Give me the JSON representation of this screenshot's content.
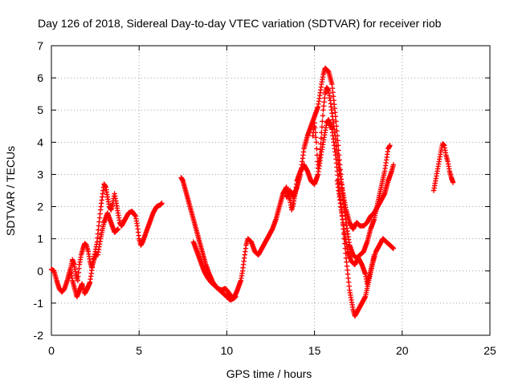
{
  "chart_data": {
    "type": "scatter",
    "title": "Day 126 of 2018, Sidereal Day-to-day VTEC variation (SDTVAR) for receiver riob",
    "xlabel": "GPS time / hours",
    "ylabel": "SDTVAR / TECUs",
    "xlim": [
      0,
      25
    ],
    "ylim": [
      -2,
      7
    ],
    "x_ticks": [
      "0",
      "5",
      "10",
      "15",
      "20",
      "25"
    ],
    "y_ticks": [
      "-2",
      "-1",
      "0",
      "1",
      "2",
      "3",
      "4",
      "5",
      "6",
      "7"
    ],
    "grid": true,
    "marker": "+",
    "series": [
      {
        "name": "SDTVAR",
        "color": "#ff0000",
        "segments": [
          [
            [
              0.0,
              0.05
            ],
            [
              0.15,
              0.0
            ],
            [
              0.3,
              -0.3
            ],
            [
              0.45,
              -0.55
            ],
            [
              0.6,
              -0.65
            ],
            [
              0.75,
              -0.55
            ],
            [
              0.9,
              -0.3
            ],
            [
              1.0,
              -0.1
            ],
            [
              1.1,
              0.1
            ],
            [
              1.2,
              0.35
            ],
            [
              1.3,
              0.2
            ],
            [
              1.4,
              -0.1
            ],
            [
              1.5,
              -0.3
            ],
            [
              1.6,
              0.2
            ],
            [
              1.7,
              0.5
            ],
            [
              1.8,
              0.7
            ],
            [
              1.9,
              0.85
            ],
            [
              2.0,
              0.8
            ],
            [
              2.1,
              0.6
            ],
            [
              2.2,
              0.3
            ],
            [
              2.3,
              0.1
            ],
            [
              2.4,
              0.3
            ],
            [
              2.5,
              0.6
            ],
            [
              2.6,
              0.9
            ],
            [
              2.7,
              1.4
            ],
            [
              2.8,
              1.9
            ],
            [
              2.9,
              2.3
            ],
            [
              3.0,
              2.7
            ],
            [
              3.1,
              2.6
            ],
            [
              3.2,
              2.3
            ],
            [
              3.3,
              2.0
            ],
            [
              3.4,
              1.9
            ],
            [
              3.5,
              2.1
            ],
            [
              3.6,
              2.4
            ],
            [
              3.7,
              2.1
            ],
            [
              3.8,
              1.8
            ],
            [
              3.9,
              1.5
            ],
            [
              4.0,
              1.4
            ],
            [
              4.2,
              1.6
            ],
            [
              4.4,
              1.8
            ],
            [
              4.6,
              1.85
            ],
            [
              4.8,
              1.7
            ],
            [
              4.9,
              1.4
            ],
            [
              5.0,
              1.0
            ],
            [
              5.1,
              0.8
            ],
            [
              5.2,
              0.9
            ],
            [
              5.4,
              1.2
            ],
            [
              5.6,
              1.5
            ],
            [
              5.8,
              1.8
            ],
            [
              6.0,
              2.0
            ],
            [
              6.2,
              2.05
            ],
            [
              6.3,
              2.1
            ]
          ],
          [
            [
              1.0,
              -0.2
            ],
            [
              1.1,
              0.0
            ],
            [
              1.2,
              -0.3
            ],
            [
              1.3,
              -0.5
            ],
            [
              1.45,
              -0.8
            ],
            [
              1.6,
              -0.6
            ],
            [
              1.75,
              -0.4
            ],
            [
              1.9,
              -0.7
            ],
            [
              2.05,
              -0.55
            ],
            [
              2.2,
              -0.35
            ],
            [
              2.35,
              0.2
            ],
            [
              2.5,
              0.5
            ],
            [
              2.65,
              0.5
            ],
            [
              2.8,
              1.0
            ],
            [
              3.0,
              1.5
            ],
            [
              3.2,
              1.8
            ],
            [
              3.4,
              1.5
            ],
            [
              3.6,
              1.2
            ],
            [
              3.8,
              1.3
            ]
          ],
          [
            [
              7.4,
              2.9
            ],
            [
              7.5,
              2.8
            ],
            [
              7.6,
              2.6
            ],
            [
              7.7,
              2.4
            ],
            [
              7.8,
              2.2
            ],
            [
              7.9,
              2.0
            ],
            [
              8.0,
              1.8
            ],
            [
              8.2,
              1.4
            ],
            [
              8.4,
              1.0
            ],
            [
              8.6,
              0.6
            ],
            [
              8.8,
              0.2
            ],
            [
              9.0,
              -0.1
            ],
            [
              9.2,
              -0.35
            ],
            [
              9.4,
              -0.5
            ],
            [
              9.6,
              -0.6
            ],
            [
              9.8,
              -0.7
            ],
            [
              10.0,
              -0.8
            ],
            [
              10.2,
              -0.9
            ],
            [
              10.4,
              -0.85
            ],
            [
              10.6,
              -0.6
            ],
            [
              10.8,
              -0.3
            ],
            [
              10.9,
              0.0
            ],
            [
              11.0,
              0.4
            ],
            [
              11.1,
              0.8
            ],
            [
              11.2,
              1.0
            ],
            [
              11.4,
              0.9
            ],
            [
              11.6,
              0.6
            ],
            [
              11.8,
              0.5
            ],
            [
              12.0,
              0.7
            ],
            [
              12.2,
              0.9
            ],
            [
              12.4,
              1.1
            ],
            [
              12.6,
              1.3
            ],
            [
              12.8,
              1.6
            ],
            [
              13.0,
              2.0
            ],
            [
              13.2,
              2.4
            ],
            [
              13.4,
              2.6
            ],
            [
              13.6,
              2.2
            ],
            [
              13.7,
              1.9
            ],
            [
              13.8,
              2.1
            ],
            [
              13.9,
              2.4
            ],
            [
              14.0,
              2.8
            ],
            [
              14.2,
              3.1
            ],
            [
              14.4,
              3.3
            ],
            [
              14.6,
              3.1
            ],
            [
              14.8,
              2.8
            ],
            [
              15.0,
              2.7
            ],
            [
              15.2,
              3.0
            ],
            [
              15.4,
              3.7
            ],
            [
              15.6,
              4.3
            ],
            [
              15.7,
              4.6
            ],
            [
              15.8,
              4.7
            ],
            [
              16.0,
              4.4
            ],
            [
              16.2,
              3.6
            ],
            [
              16.4,
              2.6
            ],
            [
              16.6,
              1.6
            ],
            [
              16.8,
              0.4
            ],
            [
              17.0,
              -0.6
            ],
            [
              17.2,
              -1.2
            ],
            [
              17.3,
              -1.4
            ],
            [
              17.5,
              -1.2
            ],
            [
              17.7,
              -1.0
            ],
            [
              17.9,
              -0.8
            ],
            [
              18.1,
              -0.3
            ],
            [
              18.3,
              0.2
            ],
            [
              18.5,
              0.6
            ],
            [
              18.7,
              0.8
            ],
            [
              18.9,
              1.0
            ],
            [
              19.1,
              0.9
            ],
            [
              19.3,
              0.8
            ],
            [
              19.5,
              0.7
            ]
          ],
          [
            [
              8.1,
              0.9
            ],
            [
              8.3,
              0.6
            ],
            [
              8.5,
              0.3
            ],
            [
              8.7,
              0.0
            ],
            [
              8.9,
              -0.2
            ],
            [
              9.1,
              -0.35
            ],
            [
              9.3,
              -0.45
            ],
            [
              9.5,
              -0.55
            ],
            [
              9.7,
              -0.6
            ],
            [
              9.9,
              -0.55
            ],
            [
              10.0,
              -0.6
            ],
            [
              10.2,
              -0.75
            ],
            [
              10.4,
              -0.85
            ],
            [
              10.5,
              -0.8
            ]
          ],
          [
            [
              13.4,
              2.3
            ],
            [
              13.6,
              2.5
            ],
            [
              13.8,
              2.3
            ],
            [
              14.0,
              2.6
            ],
            [
              14.2,
              3.0
            ],
            [
              14.4,
              3.8
            ],
            [
              14.6,
              4.2
            ],
            [
              14.8,
              4.5
            ],
            [
              15.0,
              4.8
            ],
            [
              15.2,
              5.1
            ],
            [
              15.4,
              5.8
            ],
            [
              15.5,
              6.1
            ],
            [
              15.6,
              6.3
            ],
            [
              15.8,
              6.2
            ],
            [
              16.0,
              5.8
            ],
            [
              16.2,
              4.8
            ],
            [
              16.4,
              3.6
            ],
            [
              16.6,
              2.4
            ],
            [
              16.8,
              1.5
            ],
            [
              17.0,
              0.8
            ],
            [
              17.2,
              0.5
            ],
            [
              17.4,
              0.4
            ],
            [
              17.6,
              0.5
            ],
            [
              17.8,
              0.6
            ],
            [
              18.0,
              0.9
            ],
            [
              18.2,
              1.3
            ],
            [
              18.4,
              1.6
            ],
            [
              18.6,
              2.1
            ],
            [
              18.8,
              2.6
            ],
            [
              19.0,
              3.1
            ],
            [
              19.2,
              3.8
            ],
            [
              19.3,
              3.9
            ]
          ],
          [
            [
              14.9,
              4.2
            ],
            [
              15.0,
              4.6
            ],
            [
              15.1,
              4.0
            ],
            [
              15.2,
              3.2
            ],
            [
              15.3,
              3.6
            ],
            [
              15.4,
              4.3
            ],
            [
              15.5,
              5.0
            ],
            [
              15.6,
              5.5
            ],
            [
              15.7,
              5.7
            ],
            [
              15.8,
              5.6
            ],
            [
              15.9,
              5.3
            ],
            [
              16.0,
              4.9
            ],
            [
              16.2,
              4.1
            ],
            [
              16.4,
              3.2
            ],
            [
              16.6,
              2.5
            ],
            [
              16.8,
              1.9
            ],
            [
              17.0,
              1.5
            ],
            [
              17.2,
              1.3
            ],
            [
              17.4,
              1.5
            ],
            [
              17.6,
              1.4
            ],
            [
              17.8,
              1.4
            ],
            [
              18.0,
              1.5
            ],
            [
              18.2,
              1.7
            ],
            [
              18.4,
              1.8
            ],
            [
              18.6,
              2.0
            ],
            [
              18.8,
              2.2
            ],
            [
              19.0,
              2.4
            ],
            [
              19.2,
              2.8
            ],
            [
              19.4,
              3.1
            ],
            [
              19.5,
              3.3
            ]
          ],
          [
            [
              16.3,
              2.8
            ],
            [
              16.5,
              2.0
            ],
            [
              16.7,
              1.2
            ],
            [
              16.9,
              0.6
            ],
            [
              17.1,
              0.3
            ],
            [
              17.3,
              0.2
            ],
            [
              17.5,
              0.4
            ],
            [
              17.7,
              0.2
            ],
            [
              17.9,
              -0.1
            ],
            [
              18.0,
              -0.4
            ],
            [
              18.2,
              0.0
            ],
            [
              18.4,
              0.5
            ]
          ],
          [
            [
              21.8,
              2.5
            ],
            [
              21.9,
              2.8
            ],
            [
              22.0,
              3.1
            ],
            [
              22.1,
              3.4
            ],
            [
              22.2,
              3.7
            ],
            [
              22.3,
              3.95
            ],
            [
              22.4,
              3.9
            ],
            [
              22.5,
              3.6
            ],
            [
              22.6,
              3.4
            ],
            [
              22.7,
              3.1
            ],
            [
              22.8,
              2.9
            ],
            [
              22.9,
              2.75
            ]
          ]
        ]
      }
    ]
  }
}
